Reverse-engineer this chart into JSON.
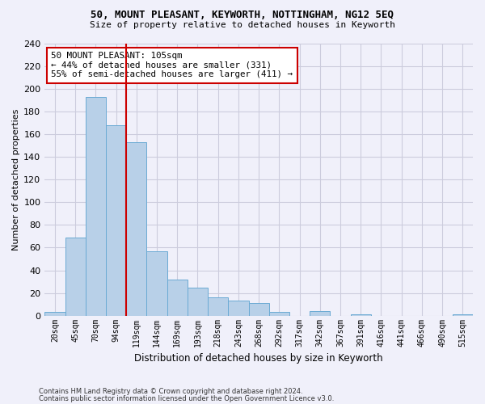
{
  "title": "50, MOUNT PLEASANT, KEYWORTH, NOTTINGHAM, NG12 5EQ",
  "subtitle": "Size of property relative to detached houses in Keyworth",
  "xlabel": "Distribution of detached houses by size in Keyworth",
  "ylabel": "Number of detached properties",
  "bar_color": "#b8d0e8",
  "bar_edge_color": "#6aaad4",
  "background_color": "#f0f0fa",
  "grid_color": "#ccccdd",
  "categories": [
    "20sqm",
    "45sqm",
    "70sqm",
    "94sqm",
    "119sqm",
    "144sqm",
    "169sqm",
    "193sqm",
    "218sqm",
    "243sqm",
    "268sqm",
    "292sqm",
    "317sqm",
    "342sqm",
    "367sqm",
    "391sqm",
    "416sqm",
    "441sqm",
    "466sqm",
    "490sqm",
    "515sqm"
  ],
  "values": [
    3,
    69,
    193,
    168,
    153,
    57,
    32,
    25,
    16,
    13,
    11,
    3,
    0,
    4,
    0,
    1,
    0,
    0,
    0,
    0,
    1
  ],
  "ylim": [
    0,
    240
  ],
  "yticks": [
    0,
    20,
    40,
    60,
    80,
    100,
    120,
    140,
    160,
    180,
    200,
    220,
    240
  ],
  "property_label": "50 MOUNT PLEASANT: 105sqm",
  "annotation_line1": "← 44% of detached houses are smaller (331)",
  "annotation_line2": "55% of semi-detached houses are larger (411) →",
  "vline_x_index": 3.5,
  "annotation_box_color": "#ffffff",
  "annotation_box_edge": "#cc0000",
  "vline_color": "#cc0000",
  "footnote1": "Contains HM Land Registry data © Crown copyright and database right 2024.",
  "footnote2": "Contains public sector information licensed under the Open Government Licence v3.0."
}
